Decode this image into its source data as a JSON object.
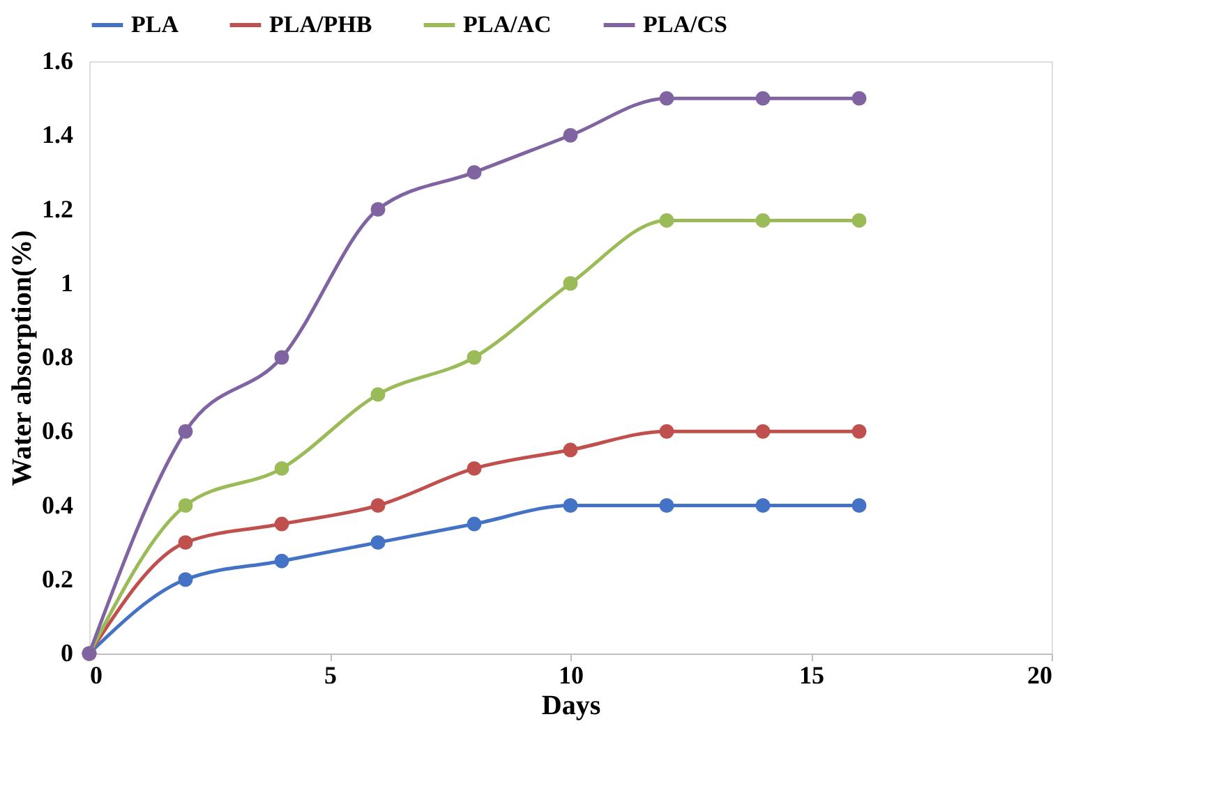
{
  "chart_data": {
    "type": "line",
    "xlabel": "Days",
    "ylabel": "Water absorption(%)",
    "x": [
      0,
      2,
      4,
      6,
      8,
      10,
      12,
      14,
      16
    ],
    "series": [
      {
        "name": "PLA",
        "color": "#4472c4",
        "values": [
          0,
          0.2,
          0.25,
          0.3,
          0.35,
          0.4,
          0.4,
          0.4,
          0.4
        ]
      },
      {
        "name": "PLA/PHB",
        "color": "#c0504d",
        "values": [
          0,
          0.3,
          0.35,
          0.4,
          0.5,
          0.55,
          0.6,
          0.6,
          0.6
        ]
      },
      {
        "name": "PLA/AC",
        "color": "#9bbb59",
        "values": [
          0,
          0.4,
          0.5,
          0.7,
          0.8,
          1.0,
          1.17,
          1.17,
          1.17
        ]
      },
      {
        "name": "PLA/CS",
        "color": "#8064a2",
        "values": [
          0,
          0.6,
          0.8,
          1.2,
          1.3,
          1.4,
          1.5,
          1.5,
          1.5
        ]
      }
    ],
    "xlim": [
      0,
      20
    ],
    "xticks": [
      0,
      5,
      10,
      15,
      20
    ],
    "ylim": [
      0,
      1.6
    ],
    "yticks": [
      0,
      0.2,
      0.4,
      0.6,
      0.8,
      1,
      1.2,
      1.4,
      1.6
    ],
    "grid": false,
    "legend": "top",
    "marker": "circle",
    "line_style": "solid"
  }
}
